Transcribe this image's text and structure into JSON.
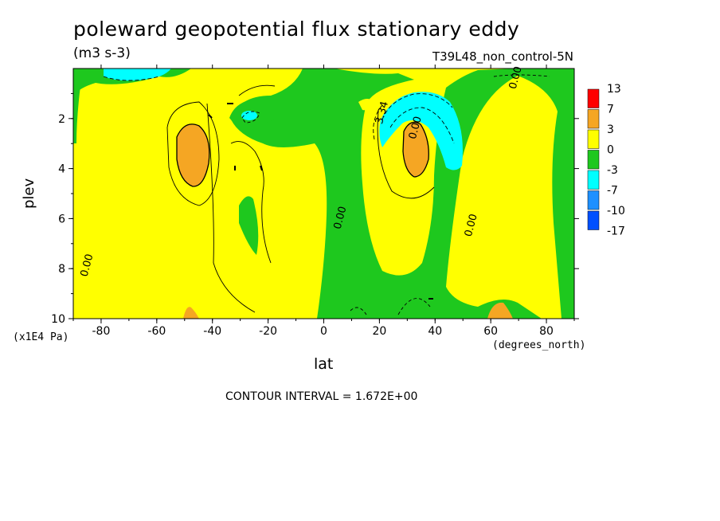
{
  "title": "poleward geopotential flux stationary eddy",
  "units": "(m3 s-3)",
  "dataset": "T39L48_non_control-5N",
  "contour_interval": "CONTOUR INTERVAL = 1.672E+00",
  "colors": {
    "red": "#ff0000",
    "orange": "#f5a623",
    "yellow": "#ffff00",
    "green": "#1ec81e",
    "cyan": "#00ffff",
    "skyblue": "#1e90ff",
    "blue": "#0050ff"
  },
  "chart_data": {
    "type": "heatmap",
    "title": "poleward geopotential flux stationary eddy",
    "xlabel": "lat",
    "ylabel": "plev",
    "x_units": "(degrees_north)",
    "y_units": "(x1E4 Pa)",
    "xlim": [
      -90,
      90
    ],
    "ylim": [
      10,
      0
    ],
    "x_ticks": [
      -80,
      -60,
      -40,
      -20,
      0,
      20,
      40,
      60,
      80
    ],
    "y_ticks": [
      2,
      4,
      6,
      8,
      10
    ],
    "colorbar": {
      "levels": [
        "13",
        "7",
        "3",
        "0",
        "-3",
        "-7",
        "-10",
        "-17"
      ],
      "colors": [
        "#ff0000",
        "#f5a623",
        "#ffff00",
        "#1ec81e",
        "#00ffff",
        "#1e90ff",
        "#0050ff"
      ]
    },
    "contour_labels": [
      {
        "text": "0.00",
        "lat": -84,
        "plev": 7.9
      },
      {
        "text": "0.00",
        "lat": 7,
        "plev": 6.0
      },
      {
        "text": "0.00",
        "lat": 54,
        "plev": 6.3
      },
      {
        "text": "0.00",
        "lat": 70,
        "plev": 0.4
      },
      {
        "text": "3.34",
        "lat": 22,
        "plev": 1.8
      },
      {
        "text": "0.00",
        "lat": 34,
        "plev": 2.4
      }
    ],
    "regions": [
      {
        "value_range": "0 to 3",
        "lat": [
          -70,
          -50
        ],
        "plev": [
          1,
          10
        ]
      },
      {
        "value_range": "3 to 7",
        "lat": [
          -50,
          -42
        ],
        "plev": [
          2.5,
          4.5
        ]
      },
      {
        "value_range": "-3 to 0",
        "lat": [
          -32,
          -20
        ],
        "plev": [
          1.2,
          2.5
        ]
      },
      {
        "value_range": "-3 to 0",
        "lat": [
          -30,
          -24
        ],
        "plev": [
          5,
          7.2
        ]
      },
      {
        "value_range": "-3 to 0",
        "lat": [
          -5,
          22
        ],
        "plev": [
          0.5,
          10
        ]
      },
      {
        "value_range": "0 to 3",
        "lat": [
          20,
          42
        ],
        "plev": [
          2,
          7.8
        ]
      },
      {
        "value_range": "3 to 7",
        "lat": [
          28,
          38
        ],
        "plev": [
          2,
          4
        ]
      },
      {
        "value_range": "-7 to -3",
        "lat": [
          20,
          48
        ],
        "plev": [
          0.8,
          3.5
        ]
      },
      {
        "value_range": "-3 to 0",
        "lat": [
          40,
          62
        ],
        "plev": [
          0,
          10
        ]
      },
      {
        "value_range": "0 to 3",
        "lat": [
          55,
          85
        ],
        "plev": [
          0.5,
          10
        ]
      },
      {
        "value_range": "-3 to 0",
        "lat": [
          80,
          90
        ],
        "plev": [
          0,
          10
        ]
      }
    ]
  }
}
